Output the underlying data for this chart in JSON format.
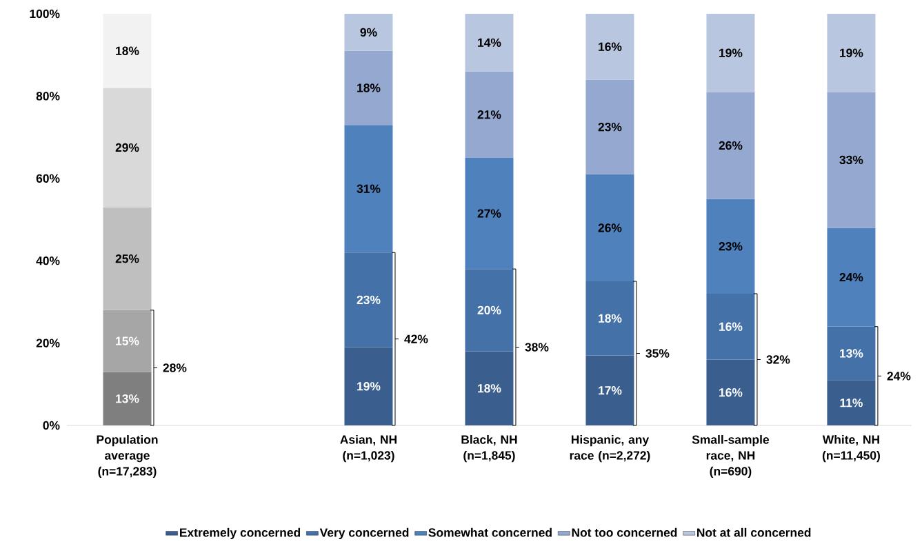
{
  "chart_data": {
    "type": "bar",
    "stacked": true,
    "legend": "bottom",
    "categories": [
      "Population average (n=17,283)",
      null,
      "Asian, NH (n=1,023)",
      "Black, NH (n=1,845)",
      "Hispanic, any race (n=2,272)",
      "Small-sample race, NH (n=690)",
      "White, NH (n=11,450)"
    ],
    "ylim": [
      0,
      100
    ],
    "yticks": [
      {
        "value": 0,
        "label": "0%"
      },
      {
        "value": 20,
        "label": "20%"
      },
      {
        "value": 40,
        "label": "40%"
      },
      {
        "value": 60,
        "label": "60%"
      },
      {
        "value": 80,
        "label": "80%"
      },
      {
        "value": 100,
        "label": "100%"
      }
    ],
    "series": [
      {
        "name": "Extremely concerned",
        "color": "#3a5f8f",
        "colors": [
          "#7f7f7f",
          null,
          "#3a5f8f",
          "#3a5f8f",
          "#3a5f8f",
          "#3a5f8f",
          "#3a5f8f"
        ],
        "values": [
          13,
          null,
          19,
          18,
          17,
          16,
          11
        ],
        "value_labels": [
          "13%",
          null,
          "19%",
          "18%",
          "17%",
          "16%",
          "11%"
        ]
      },
      {
        "name": "Very concerned",
        "color": "#4472a8",
        "colors": [
          "#a6a6a6",
          null,
          "#4472a8",
          "#4472a8",
          "#4472a8",
          "#4472a8",
          "#4472a8"
        ],
        "values": [
          15,
          null,
          23,
          20,
          18,
          16,
          13
        ],
        "value_labels": [
          "15%",
          null,
          "23%",
          "20%",
          "18%",
          "16%",
          "13%"
        ]
      },
      {
        "name": "Somewhat concerned",
        "color": "#4f81bd",
        "colors": [
          "#bfbfbf",
          null,
          "#4f81bd",
          "#4f81bd",
          "#4f81bd",
          "#4f81bd",
          "#4f81bd"
        ],
        "values": [
          25,
          null,
          31,
          27,
          26,
          23,
          24
        ],
        "value_labels": [
          "25%",
          null,
          "31%",
          "27%",
          "26%",
          "23%",
          "24%"
        ]
      },
      {
        "name": "Not too concerned",
        "color": "#95a9d0",
        "colors": [
          "#d9d9d9",
          null,
          "#95a9d0",
          "#95a9d0",
          "#95a9d0",
          "#95a9d0",
          "#95a9d0"
        ],
        "values": [
          29,
          null,
          18,
          21,
          23,
          26,
          33
        ],
        "value_labels": [
          "29%",
          null,
          "18%",
          "21%",
          "23%",
          "26%",
          "33%"
        ]
      },
      {
        "name": "Not at all concerned",
        "color": "#b9c6df",
        "colors": [
          "#f2f2f2",
          null,
          "#b9c6df",
          "#b9c6df",
          "#b9c6df",
          "#b9c6df",
          "#b9c6df"
        ],
        "values": [
          18,
          null,
          9,
          14,
          16,
          19,
          19
        ],
        "value_labels": [
          "18%",
          null,
          "9%",
          "14%",
          "16%",
          "19%",
          "19%"
        ]
      }
    ],
    "annotations": [
      "28%",
      "42%",
      "38%",
      "35%",
      "32%",
      "24%"
    ]
  }
}
